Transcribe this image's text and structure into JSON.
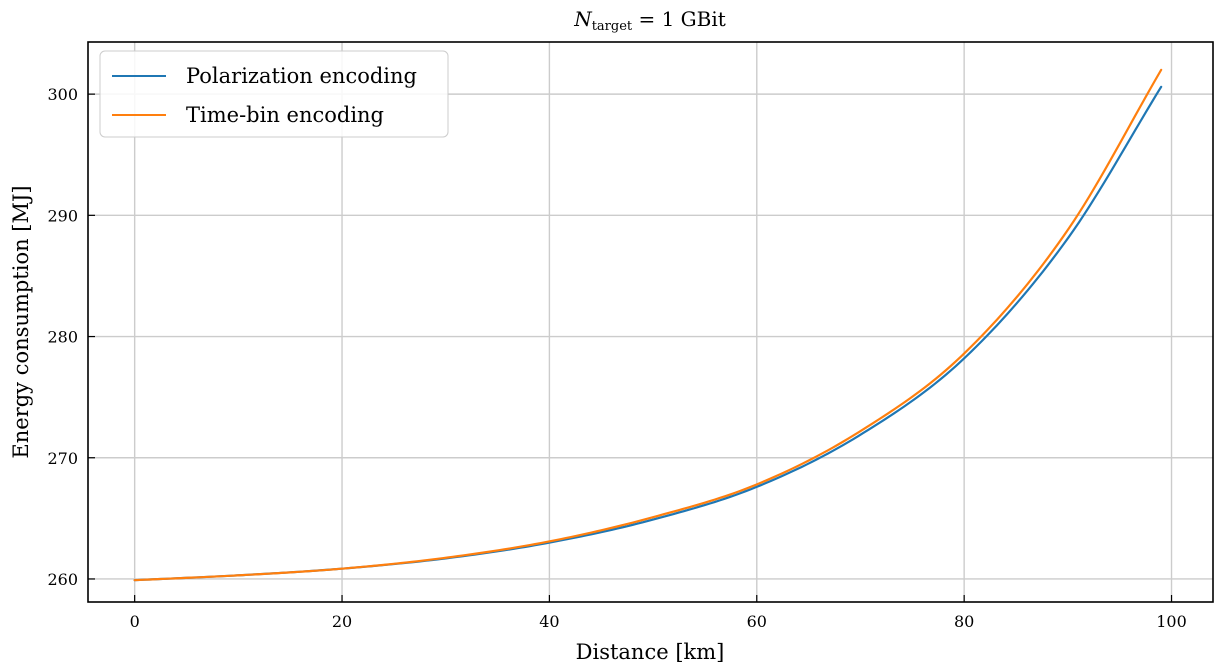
{
  "chart_data": {
    "type": "line",
    "title": {
      "main": "N",
      "sub": "target",
      "rest": " = 1 GBit"
    },
    "xlabel": "Distance [km]",
    "ylabel": "Energy consumption [MJ]",
    "xlim": [
      -4.5,
      104
    ],
    "ylim": [
      258.1,
      304.3
    ],
    "xticks": [
      0,
      20,
      40,
      60,
      80,
      100
    ],
    "yticks": [
      260,
      270,
      280,
      290,
      300
    ],
    "xtick_labels": [
      "0",
      "20",
      "40",
      "60",
      "80",
      "100"
    ],
    "ytick_labels": [
      "260",
      "270",
      "280",
      "290",
      "300"
    ],
    "grid": true,
    "legend_position": "top-left",
    "x": [
      0,
      10,
      20,
      30,
      40,
      50,
      60,
      70,
      80,
      90,
      99
    ],
    "series": [
      {
        "name": "Polarization encoding",
        "color": "#1f77b4",
        "values": [
          259.9,
          260.3,
          260.85,
          261.7,
          263.0,
          264.9,
          267.6,
          271.9,
          278.2,
          288.1,
          300.6
        ]
      },
      {
        "name": "Time-bin encoding",
        "color": "#ff7f0e",
        "values": [
          259.9,
          260.3,
          260.85,
          261.75,
          263.1,
          265.1,
          267.8,
          272.2,
          278.6,
          288.8,
          302.0
        ]
      }
    ]
  }
}
